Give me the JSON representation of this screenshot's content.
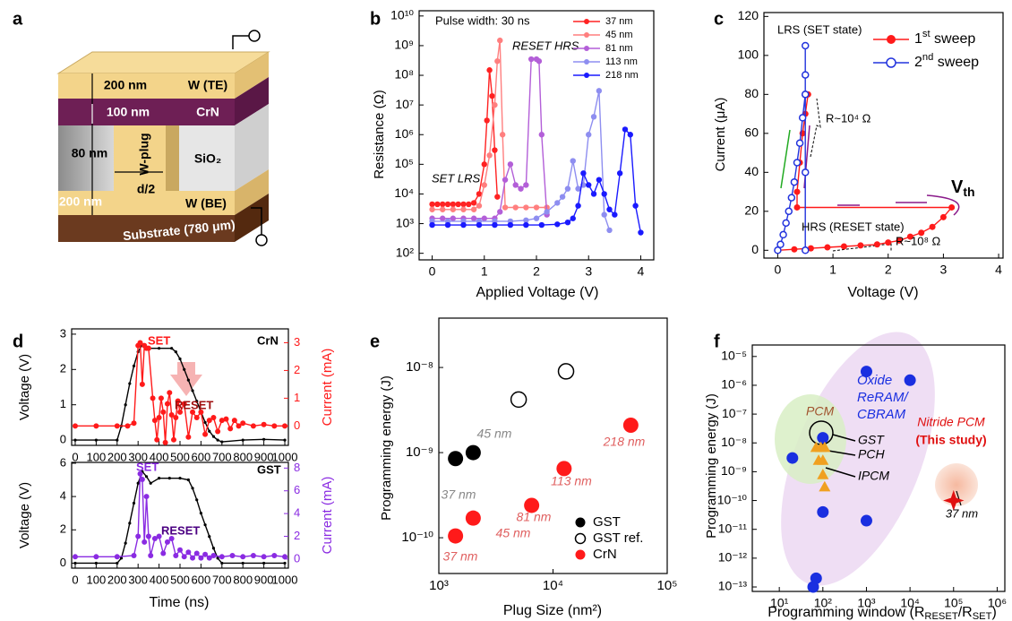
{
  "schematic": {
    "panel_label": "a",
    "labels": [
      "200 nm",
      "100 nm",
      "80 nm",
      "W-plug",
      "d/2",
      "200 nm",
      "W (TE)",
      "CrN",
      "SiO₂",
      "W (BE)",
      "Substrate (780 μm)"
    ]
  },
  "chart_data": [
    {
      "panel_label": "b",
      "type": "line",
      "xlabel": "Applied Voltage (V)",
      "ylabel": "Resistance (Ω)",
      "log_y": true,
      "xlim": [
        -0.25,
        4.25
      ],
      "xticks": [
        0,
        1,
        2,
        3,
        4
      ],
      "ylim": [
        60,
        15000000000
      ],
      "yticks": [
        {
          "value": 100,
          "label": "10²"
        },
        {
          "value": 1000,
          "label": "10³"
        },
        {
          "value": 10000,
          "label": "10⁴"
        },
        {
          "value": 100000,
          "label": "10⁵"
        },
        {
          "value": 1000000,
          "label": "10⁶"
        },
        {
          "value": 10000000,
          "label": "10⁷"
        },
        {
          "value": 100000000,
          "label": "10⁸"
        },
        {
          "value": 1000000000,
          "label": "10⁹"
        },
        {
          "value": 10000000000,
          "label": "10¹⁰"
        }
      ],
      "legend": "upper right",
      "annotations": [
        "Pulse width: 30 ns",
        "RESET HRS",
        "SET LRS"
      ],
      "series": [
        {
          "name": "37 nm",
          "color": "#ff2222",
          "marker": "circle",
          "x": [
            0,
            0.1,
            0.2,
            0.3,
            0.4,
            0.5,
            0.6,
            0.7,
            0.8,
            0.9,
            1.0,
            1.05,
            1.1,
            1.15,
            1.2,
            1.25
          ],
          "values": [
            4500,
            4500,
            4500,
            4500,
            4500,
            4500,
            4500,
            4500,
            5000,
            10000,
            100000,
            3000000,
            150000000,
            20000000,
            300000,
            8000
          ]
        },
        {
          "name": "45 nm",
          "color": "#ff7f7f",
          "marker": "circle",
          "x": [
            0,
            0.2,
            0.4,
            0.6,
            0.8,
            0.9,
            1.0,
            1.1,
            1.2,
            1.25,
            1.3,
            1.35,
            1.4,
            1.6,
            1.8,
            2.0,
            2.2
          ],
          "values": [
            3000,
            3000,
            3000,
            3000,
            3000,
            4000,
            20000,
            200000,
            10000000,
            300000000,
            1500000000,
            1000000,
            3500,
            3500,
            3500,
            3500,
            3500
          ]
        },
        {
          "name": "81 nm",
          "color": "#b35fd8",
          "marker": "circle",
          "x": [
            0,
            0.2,
            0.4,
            0.6,
            0.8,
            1.0,
            1.2,
            1.3,
            1.4,
            1.5,
            1.6,
            1.7,
            1.8,
            1.9,
            2.0,
            2.05,
            2.1,
            2.2
          ],
          "values": [
            1500,
            1500,
            1500,
            1500,
            1500,
            1500,
            1500,
            2500,
            30000,
            100000,
            20000,
            15000,
            20000,
            350000000,
            350000000,
            300000000,
            1000000,
            2000
          ]
        },
        {
          "name": "113 nm",
          "color": "#8e8ef0",
          "marker": "circle",
          "x": [
            0,
            0.3,
            0.6,
            0.9,
            1.2,
            1.5,
            1.8,
            2.0,
            2.2,
            2.4,
            2.5,
            2.6,
            2.7,
            2.8,
            2.9,
            3.0,
            3.1,
            3.2,
            3.3,
            3.4
          ],
          "values": [
            1200,
            1200,
            1200,
            1200,
            1200,
            1200,
            1300,
            1500,
            2500,
            5000,
            8000,
            15000,
            130000,
            15000,
            20000,
            1000000,
            4000000,
            30000000,
            2000,
            600
          ]
        },
        {
          "name": "218 nm",
          "color": "#1a1aff",
          "marker": "circle",
          "x": [
            0,
            0.3,
            0.6,
            0.9,
            1.2,
            1.5,
            1.8,
            2.1,
            2.4,
            2.6,
            2.7,
            2.8,
            2.9,
            3.0,
            3.1,
            3.2,
            3.3,
            3.4,
            3.5,
            3.6,
            3.7,
            3.8,
            3.9,
            4.0
          ],
          "values": [
            900,
            900,
            900,
            900,
            900,
            900,
            900,
            900,
            950,
            1100,
            1500,
            4000,
            50000,
            20000,
            10000,
            30000,
            10000,
            3000,
            2000,
            50000,
            1500000,
            1000000,
            4000,
            500
          ]
        }
      ]
    },
    {
      "panel_label": "c",
      "type": "line",
      "xlabel": "Voltage (V)",
      "ylabel": "Current (μA)",
      "xlim": [
        -0.25,
        4.08
      ],
      "xticks": [
        0,
        1,
        2,
        3,
        4
      ],
      "ylim": [
        -4,
        122
      ],
      "yticks": [
        0,
        20,
        40,
        60,
        80,
        100,
        120
      ],
      "legend": "upper right",
      "annotations": [
        "LRS (SET state)",
        "R~10⁴ Ω",
        "HRS (RESET state)",
        "R~10⁸ Ω",
        [
          "V",
          "th"
        ]
      ],
      "series": [
        {
          "name": [
            "1",
            "st",
            " sweep"
          ],
          "color": "#ff1a1a",
          "marker": "circle",
          "x": [
            0,
            0.3,
            0.6,
            0.9,
            1.2,
            1.5,
            1.8,
            2.0,
            2.2,
            2.4,
            2.6,
            2.8,
            3.0,
            3.15,
            0.35,
            0.35,
            0.4,
            0.45,
            0.5,
            0.55
          ],
          "values": [
            0,
            0.5,
            1,
            1.5,
            2,
            2.5,
            3,
            4,
            5,
            7,
            9,
            12,
            17,
            22,
            22,
            30,
            45,
            60,
            70,
            80
          ]
        },
        {
          "name": [
            "2",
            "nd",
            " sweep"
          ],
          "color": "#2233dd",
          "marker": "open",
          "x": [
            0,
            0.05,
            0.1,
            0.15,
            0.2,
            0.25,
            0.3,
            0.35,
            0.4,
            0.45,
            0.5,
            0.5,
            0.5,
            0.5,
            0.5,
            0.5
          ],
          "values": [
            0,
            3,
            8,
            14,
            20,
            27,
            35,
            45,
            55,
            68,
            80,
            90,
            105,
            80,
            40,
            0
          ]
        }
      ]
    },
    {
      "panel_label": "d",
      "type": "line",
      "ylabel": "Voltage (V)",
      "y2label": "Current (mA)",
      "y2color": "#ff1a1a",
      "xlim": [
        -17,
        1017
      ],
      "xticks": [
        0,
        100,
        200,
        300,
        400,
        500,
        600,
        700,
        800,
        900,
        1000
      ],
      "ylim": [
        -0.15,
        3.15
      ],
      "yticks": [
        0,
        1,
        2,
        3
      ],
      "y2lim": [
        -0.7,
        3.5
      ],
      "y2ticks": [
        0,
        1,
        2,
        3
      ],
      "annotations": [
        "SET",
        "RESET",
        "CrN"
      ],
      "series": [
        {
          "color": "#000000",
          "marker": "dot",
          "x": [
            0,
            100,
            200,
            220,
            240,
            260,
            280,
            300,
            320,
            340,
            400,
            460,
            480,
            500,
            520,
            540,
            560,
            580,
            600,
            620,
            640,
            660,
            680,
            700,
            800,
            900,
            1000
          ],
          "values": [
            0,
            0,
            0,
            0.4,
            1.0,
            1.6,
            2.1,
            2.5,
            2.7,
            2.6,
            2.6,
            2.6,
            2.5,
            2.3,
            2.0,
            1.7,
            1.4,
            1.1,
            0.8,
            0.5,
            0.25,
            0.1,
            0,
            -0.05,
            0,
            0.02,
            0
          ]
        },
        {
          "color": "#ff1a1a",
          "marker": "circle",
          "axis": "y2",
          "x": [
            0,
            100,
            200,
            250,
            280,
            300,
            310,
            320,
            330,
            340,
            350,
            370,
            380,
            390,
            400,
            410,
            420,
            430,
            440,
            450,
            460,
            470,
            480,
            490,
            500,
            520,
            540,
            560,
            580,
            600,
            620,
            640,
            660,
            680,
            700,
            720,
            740,
            760,
            780,
            800,
            850,
            900,
            950,
            1000
          ],
          "values": [
            0,
            0,
            0,
            0,
            0.1,
            2.9,
            3.0,
            1.5,
            2.9,
            2.8,
            2.8,
            1.0,
            0.2,
            -0.5,
            0.3,
            1.0,
            0.5,
            -0.6,
            0.8,
            1.2,
            0.4,
            -0.5,
            0.3,
            0.9,
            0.5,
            0.8,
            -0.4,
            0.5,
            0.3,
            0.5,
            -0.3,
            0.2,
            0.3,
            -0.2,
            0.2,
            0.25,
            -0.1,
            0.2,
            0,
            0.1,
            0,
            0.05,
            0,
            0
          ]
        }
      ]
    },
    {
      "type": "line",
      "xlabel": "Time (ns)",
      "ylabel": "Voltage (V)",
      "y2label": "Current (mA)",
      "y2color": "#8a2be2",
      "xlim": [
        -17,
        1017
      ],
      "xticks": [
        0,
        100,
        200,
        300,
        400,
        500,
        600,
        700,
        800,
        900,
        1000
      ],
      "ylim": [
        -0.3,
        6.05
      ],
      "yticks": [
        0,
        2,
        4,
        6
      ],
      "y2lim": [
        -0.8,
        8.5
      ],
      "y2ticks": [
        0,
        2,
        4,
        6,
        8
      ],
      "annotations": [
        "SET",
        "RESET",
        "GST"
      ],
      "series": [
        {
          "color": "#000000",
          "marker": "dot",
          "x": [
            0,
            100,
            200,
            220,
            240,
            260,
            280,
            300,
            320,
            340,
            360,
            400,
            450,
            500,
            540,
            560,
            580,
            600,
            620,
            640,
            660,
            680,
            700,
            800,
            900,
            1000
          ],
          "values": [
            0,
            0,
            0,
            0.3,
            1.2,
            2.4,
            3.6,
            4.8,
            5.5,
            5.2,
            4.8,
            5.1,
            5.1,
            5.1,
            5.0,
            4.5,
            3.8,
            3.0,
            2.3,
            1.6,
            0.9,
            0.3,
            0,
            0,
            0,
            0
          ]
        },
        {
          "color": "#8a2be2",
          "marker": "circle",
          "axis": "y2",
          "x": [
            0,
            100,
            200,
            280,
            300,
            310,
            320,
            330,
            340,
            350,
            360,
            380,
            400,
            420,
            440,
            460,
            480,
            500,
            520,
            540,
            560,
            580,
            600,
            620,
            640,
            660,
            700,
            750,
            800,
            850,
            900,
            950,
            1000
          ],
          "values": [
            0.2,
            0.2,
            0.2,
            0.3,
            2,
            7.5,
            7.0,
            1.5,
            5.5,
            2,
            0.3,
            1.8,
            2.0,
            0.5,
            1.5,
            1.8,
            0.3,
            0.8,
            0.2,
            0.6,
            0.1,
            0.5,
            0.1,
            0.4,
            0.1,
            0.3,
            0.2,
            0.3,
            0.2,
            0.3,
            0.2,
            0.3,
            0.2
          ]
        }
      ]
    },
    {
      "panel_label": "e",
      "type": "scatter",
      "xlabel": "Plug Size (nm²)",
      "ylabel": "Programming energy (J)",
      "log_x": true,
      "log_y": true,
      "xlim": [
        1000,
        100000
      ],
      "xticks": [
        {
          "value": 1000,
          "label": "10³"
        },
        {
          "value": 10000,
          "label": "10⁴"
        },
        {
          "value": 100000,
          "label": "10⁵"
        }
      ],
      "ylim": [
        3.8e-11,
        3.8e-08
      ],
      "yticks": [
        {
          "value": 1e-10,
          "label": "10⁻¹⁰"
        },
        {
          "value": 1e-09,
          "label": "10⁻⁹"
        },
        {
          "value": 1e-08,
          "label": "10⁻⁸"
        }
      ],
      "legend": "lower right",
      "annotations": [
        "37 nm",
        "45 nm",
        "37 nm",
        "45 nm",
        "81 nm",
        "113 nm",
        "218 nm"
      ],
      "series": [
        {
          "name": "GST",
          "color": "#000000",
          "marker": "circle",
          "x": [
            1400,
            2000
          ],
          "values": [
            8.5e-10,
            1e-09
          ]
        },
        {
          "name": "GST ref.",
          "color": "#000000",
          "marker": "open",
          "x": [
            5000,
            13000
          ],
          "values": [
            4.2e-09,
            9e-09
          ]
        },
        {
          "name": "CrN",
          "color": "#ff1a1a",
          "marker": "circle",
          "x": [
            1400,
            2000,
            6500,
            12500,
            48000
          ],
          "values": [
            1.05e-10,
            1.7e-10,
            2.4e-10,
            6.5e-10,
            2.1e-09
          ]
        }
      ]
    },
    {
      "panel_label": "f",
      "type": "scatter",
      "xlabel": [
        "Programming window (R",
        "RESET",
        "/R",
        "SET",
        ")"
      ],
      "ylabel": "Programming energy (J)",
      "log_x": true,
      "log_y": true,
      "xlim": [
        2.4,
        1500000
      ],
      "xticks": [
        {
          "value": 10,
          "label": "10¹"
        },
        {
          "value": 100,
          "label": "10²"
        },
        {
          "value": 1000,
          "label": "10³"
        },
        {
          "value": 10000,
          "label": "10⁴"
        },
        {
          "value": 100000,
          "label": "10⁵"
        },
        {
          "value": 1000000,
          "label": "10⁶"
        }
      ],
      "ylim": [
        7e-14,
        2.5e-05
      ],
      "yticks": [
        {
          "value": 1e-13,
          "label": "10⁻¹³"
        },
        {
          "value": 1e-12,
          "label": "10⁻¹²"
        },
        {
          "value": 1e-11,
          "label": "10⁻¹¹"
        },
        {
          "value": 1e-10,
          "label": "10⁻¹⁰"
        },
        {
          "value": 1e-09,
          "label": "10⁻⁹"
        },
        {
          "value": 1e-08,
          "label": "10⁻⁸"
        },
        {
          "value": 1e-07,
          "label": "10⁻⁷"
        },
        {
          "value": 1e-06,
          "label": "10⁻⁶"
        },
        {
          "value": 1e-05,
          "label": "10⁻⁵"
        }
      ],
      "annotations": [
        "PCM",
        "GST",
        "PCH",
        "IPCM",
        "Oxide",
        "ReRAM/",
        "CBRAM",
        "Nitride PCM",
        "(This study)",
        "37 nm"
      ],
      "series": [
        {
          "color": "#1a2fe0",
          "marker": "circle",
          "x": [
            20,
            60,
            70,
            100,
            100,
            1000,
            10000,
            1000
          ],
          "values": [
            3e-09,
            1e-13,
            2e-13,
            1.5e-08,
            4e-11,
            3e-06,
            1.5e-06,
            2e-11
          ]
        },
        {
          "color": "#f0a020",
          "marker": "triangle",
          "x": [
            70,
            90,
            110,
            80,
            100,
            100,
            110
          ],
          "values": [
            7e-09,
            7e-09,
            7e-09,
            2.5e-09,
            2.5e-09,
            8e-10,
            3e-10
          ]
        },
        {
          "color": "#e01010",
          "marker": "star",
          "x": [
            100000
          ],
          "values": [
            1e-10
          ]
        }
      ]
    }
  ]
}
